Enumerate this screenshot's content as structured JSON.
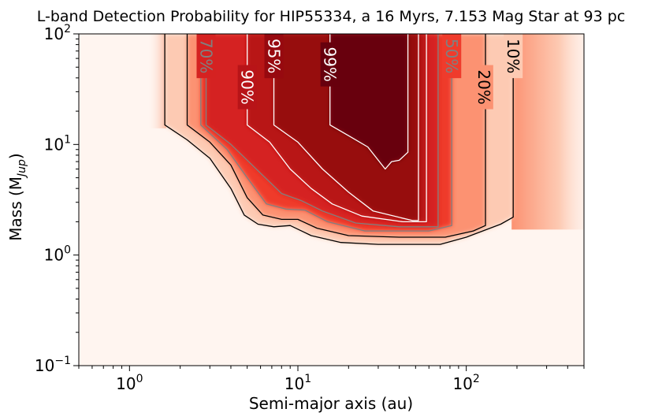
{
  "chart_data": {
    "type": "heatmap",
    "title": "L-band Detection Probability for HIP55334, a 16 Myrs, 7.153 Mag Star at 93 pc",
    "xlabel": "Semi-major axis (au)",
    "ylabel_main": "Mass (M",
    "ylabel_sub": "Jup",
    "ylabel_close": ")",
    "x_scale": "log",
    "y_scale": "log",
    "xlim": [
      0.5,
      500
    ],
    "ylim": [
      0.1,
      100
    ],
    "x_ticks": [
      {
        "value": 1,
        "base": "10",
        "exp": "0"
      },
      {
        "value": 10,
        "base": "10",
        "exp": "1"
      },
      {
        "value": 100,
        "base": "10",
        "exp": "2"
      }
    ],
    "y_ticks": [
      {
        "value": 0.1,
        "base": "10",
        "exp": "−1"
      },
      {
        "value": 1,
        "base": "10",
        "exp": "0"
      },
      {
        "value": 10,
        "base": "10",
        "exp": "1"
      },
      {
        "value": 100,
        "base": "10",
        "exp": "2"
      }
    ],
    "colormap": "Reds",
    "contours": [
      {
        "level": 10,
        "label": "10%",
        "color": "#000000",
        "points": [
          [
            1.62,
            100
          ],
          [
            1.62,
            15
          ],
          [
            2.2,
            11
          ],
          [
            3.0,
            7.5
          ],
          [
            4.0,
            4.0
          ],
          [
            4.8,
            2.3
          ],
          [
            5.8,
            1.9
          ],
          [
            7.2,
            1.8
          ],
          [
            9.0,
            1.85
          ],
          [
            12,
            1.5
          ],
          [
            18,
            1.3
          ],
          [
            30,
            1.25
          ],
          [
            70,
            1.25
          ],
          [
            100,
            1.45
          ],
          [
            160,
            1.9
          ],
          [
            190,
            2.2
          ],
          [
            190,
            100
          ]
        ],
        "label_at": [
          190,
          63
        ]
      },
      {
        "level": 20,
        "label": "20%",
        "color": "#000000",
        "points": [
          [
            2.2,
            100
          ],
          [
            2.2,
            15
          ],
          [
            3.0,
            10.5
          ],
          [
            4.0,
            6.5
          ],
          [
            5.0,
            3.3
          ],
          [
            6.2,
            2.3
          ],
          [
            8.0,
            2.1
          ],
          [
            10,
            2.1
          ],
          [
            13,
            1.75
          ],
          [
            20,
            1.5
          ],
          [
            40,
            1.45
          ],
          [
            75,
            1.45
          ],
          [
            110,
            1.65
          ],
          [
            130,
            1.85
          ],
          [
            130,
            100
          ]
        ],
        "label_at": [
          127,
          33
        ]
      },
      {
        "level": 50,
        "label": "50%",
        "color": "#808080",
        "points": [
          [
            2.65,
            100
          ],
          [
            2.65,
            15
          ],
          [
            3.8,
            9.0
          ],
          [
            5.0,
            5.0
          ],
          [
            6.5,
            2.9
          ],
          [
            8.5,
            2.6
          ],
          [
            11,
            2.55
          ],
          [
            15,
            2.0
          ],
          [
            25,
            1.65
          ],
          [
            60,
            1.65
          ],
          [
            82,
            1.85
          ],
          [
            82,
            100
          ]
        ],
        "label_at": [
          82,
          63
        ]
      },
      {
        "level": 70,
        "label": "70%",
        "color": "#808080",
        "points": [
          [
            2.85,
            100
          ],
          [
            2.85,
            15
          ],
          [
            4.0,
            10.0
          ],
          [
            6.0,
            5.5
          ],
          [
            8.0,
            3.6
          ],
          [
            10.5,
            3.1
          ],
          [
            14,
            2.5
          ],
          [
            22,
            1.95
          ],
          [
            40,
            1.8
          ],
          [
            68,
            1.8
          ],
          [
            68,
            100
          ]
        ],
        "label_at": [
          2.85,
          63
        ]
      },
      {
        "level": 90,
        "label": "90%",
        "color": "#ffffff",
        "points": [
          [
            5.0,
            100
          ],
          [
            5.0,
            15
          ],
          [
            6.8,
            10.5
          ],
          [
            9.0,
            6.0
          ],
          [
            12,
            4.0
          ],
          [
            16,
            2.9
          ],
          [
            24,
            2.25
          ],
          [
            42,
            2.0
          ],
          [
            58,
            2.0
          ],
          [
            58,
            100
          ]
        ],
        "label_at": [
          5.0,
          33
        ]
      },
      {
        "level": 95,
        "label": "95%",
        "color": "#ffffff",
        "points": [
          [
            7.2,
            100
          ],
          [
            7.2,
            15
          ],
          [
            10,
            10.5
          ],
          [
            14,
            6.0
          ],
          [
            20,
            3.7
          ],
          [
            28,
            2.5
          ],
          [
            48,
            2.05
          ],
          [
            52,
            2.05
          ],
          [
            52,
            100
          ]
        ],
        "label_at": [
          7.2,
          63
        ]
      },
      {
        "level": 99,
        "label": "99%",
        "color": "#ffffff",
        "points": [
          [
            15.5,
            100
          ],
          [
            15.5,
            15
          ],
          [
            20,
            12
          ],
          [
            26,
            9.5
          ],
          [
            33,
            6.0
          ],
          [
            36,
            7.0
          ],
          [
            40,
            7.2
          ],
          [
            45,
            8.5
          ],
          [
            45,
            100
          ]
        ],
        "label_at": [
          15.5,
          53
        ]
      }
    ]
  }
}
